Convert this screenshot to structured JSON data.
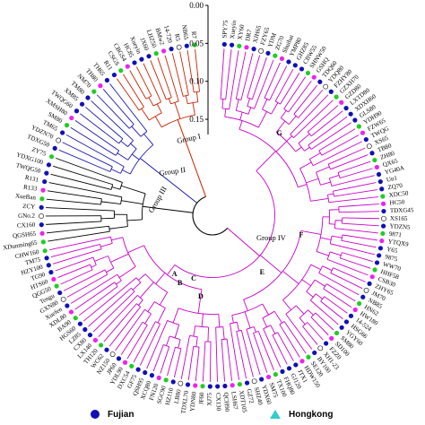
{
  "scale": {
    "ticks": [
      {
        "value": 0.0,
        "label": "0.00"
      },
      {
        "value": 0.05,
        "label": "0.05"
      },
      {
        "value": 0.1,
        "label": "0.10"
      },
      {
        "value": 0.15,
        "label": "0.15"
      }
    ],
    "max": 0.17
  },
  "colors": {
    "group1": "#cc2200",
    "group2": "#1a1aaa",
    "group3": "#000000",
    "group4": "#cc00cc",
    "fujian": "#1010b8",
    "guangdong": "#ee22ee",
    "green": "#22cc22",
    "hongkong": "#33cccc"
  },
  "groups": [
    {
      "id": "g1",
      "label": "Group I",
      "color": "group1"
    },
    {
      "id": "g2",
      "label": "Group II",
      "color": "group2"
    },
    {
      "id": "g3",
      "label": "Group III",
      "color": "group3"
    },
    {
      "id": "g4",
      "label": "Group IV",
      "color": "group4"
    }
  ],
  "node_labels": [
    "A",
    "B",
    "C",
    "D",
    "E",
    "F",
    "G"
  ],
  "leaves": {
    "group1": [
      "R11",
      "CSGS",
      "CBGS4",
      "HC85",
      "Xueyin",
      "JX60",
      "LHZ50",
      "BMw2",
      "14-720",
      "R5",
      "NB65",
      "R7"
    ],
    "group2": [
      "TDXG50",
      "YDZN70",
      "TM65",
      "SM80",
      "XMSH80",
      "TWQG60",
      "XM85",
      "TM80",
      "NM70",
      "TH80",
      "TH65"
    ],
    "group3": [
      "XDunming65",
      "QGSH65",
      "CX160",
      "GNo.2",
      "ZCY",
      "XueBan",
      "R133",
      "R131",
      "TWQG50",
      "YDXG100",
      "ZY75"
    ],
    "group4": [
      "SPY75",
      "Xueyin",
      "XY60",
      "DR7",
      "XJH65",
      "FZY65",
      "YDM",
      "ZG70",
      "Shuibai",
      "YMP80",
      "GHZ85",
      "CBW55",
      "SHNW50",
      "GSHQ",
      "TDQ60",
      "YDQ80",
      "FZHY80",
      "GZXH70",
      "GZD80",
      "LXTD80",
      "XDXH60",
      "GLS80",
      "YDH90",
      "FZW65",
      "TWQG",
      "XS65",
      "TB80",
      "ZH80",
      "QX65",
      "YG40A",
      "Un1",
      "ZQ70",
      "XDC50",
      "HC50",
      "TDXG45",
      "XS165",
      "YDZN5",
      "9871",
      "YTQX9",
      "Y65",
      "9875",
      "WW70",
      "HHF58",
      "CSB30",
      "ZHY65",
      "JM70",
      "NB85",
      "HN62",
      "HW180",
      "14-524",
      "HSG66",
      "YGY60",
      "SM80",
      "SD100",
      "FZZ0",
      "XH1-23",
      "BY100",
      "SE120",
      "HDW150",
      "JTX1",
      "GJ120",
      "FHQ80",
      "TX100",
      "SM75",
      "YDX60",
      "SHZ40",
      "GZ72",
      "XDT105",
      "LSH67",
      "QCH90",
      "CX130",
      "XJ75",
      "JF60",
      "YDN80",
      "TDXL70",
      "LB80",
      "HZ110",
      "SGC90",
      "FN120",
      "XCQ80",
      "QSH95",
      "GF75",
      "DXC54",
      "YDL90",
      "JP60",
      "NZ150",
      "WC62",
      "TH120",
      "LX140",
      "CX80",
      "LZ85",
      "HGS60",
      "BA90",
      "XDL80",
      "Xuefen",
      "GXN80",
      "Tengu",
      "QGG50",
      "HTS60",
      "TG90",
      "HZY100",
      "TM75",
      "CHW160"
    ]
  },
  "legend": {
    "fujian": "Fujian",
    "hongkong": "Hongkong"
  }
}
